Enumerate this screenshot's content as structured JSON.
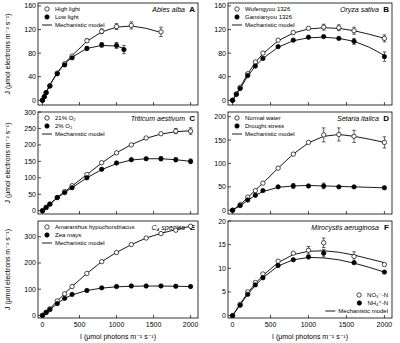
{
  "chart_data": [
    {
      "type": "scatter",
      "panel": "A",
      "title": "Abies alba",
      "y_label": "J (μmol electrons m⁻² s⁻¹)",
      "xlim": [
        -60,
        2100
      ],
      "xticks": [
        0,
        500,
        1000,
        1500,
        2000
      ],
      "ylim": [
        -8,
        165
      ],
      "yticks": [
        0,
        40,
        80,
        120,
        160
      ],
      "tick_labels": "y",
      "legend": "top-left",
      "series": [
        {
          "name": "High light",
          "color": "#000000",
          "marker": "open-circle",
          "x": [
            0,
            25,
            50,
            100,
            200,
            300,
            400,
            600,
            800,
            1000,
            1200,
            1600
          ],
          "values": [
            0,
            6,
            13,
            25,
            46,
            62,
            75,
            101,
            117,
            125,
            127,
            116
          ],
          "errors": [
            null,
            null,
            null,
            null,
            null,
            null,
            null,
            3,
            4,
            5,
            6,
            8
          ]
        },
        {
          "name": "Low light",
          "color": "#000000",
          "marker": "filled-circle",
          "x": [
            0,
            25,
            50,
            100,
            200,
            300,
            400,
            600,
            800,
            1000,
            1100
          ],
          "values": [
            0,
            6,
            13,
            24,
            45,
            60,
            72,
            88,
            94,
            93,
            86
          ],
          "errors": [
            null,
            null,
            null,
            null,
            null,
            null,
            null,
            3,
            4,
            5,
            7
          ]
        },
        {
          "name": "Mechanistic model",
          "type": "line",
          "color": "#000000",
          "line_style": "solid",
          "x": [
            0,
            100,
            200,
            300,
            400,
            600,
            800,
            1000,
            1200,
            1400,
            1600,
            null,
            0,
            100,
            200,
            300,
            400,
            600,
            800,
            1000,
            1100
          ],
          "values": [
            0,
            26,
            47,
            63,
            76,
            100,
            116,
            124,
            126,
            122,
            115,
            null,
            0,
            26,
            46,
            62,
            73,
            88,
            93,
            92,
            88
          ]
        }
      ]
    },
    {
      "type": "scatter",
      "panel": "B",
      "title": "Oryza sativa",
      "xlim": [
        -60,
        2100
      ],
      "xticks": [
        0,
        500,
        1000,
        1500,
        2000
      ],
      "ylim": [
        -8,
        165
      ],
      "yticks": [
        0,
        40,
        80,
        120,
        160
      ],
      "tick_labels": "y",
      "legend": "top-left",
      "series": [
        {
          "name": "Wufengyou 1326",
          "color": "#000000",
          "marker": "open-circle",
          "x": [
            0,
            50,
            100,
            200,
            300,
            400,
            600,
            800,
            1000,
            1200,
            1400,
            1600,
            2000
          ],
          "values": [
            0,
            11,
            22,
            45,
            65,
            80,
            102,
            115,
            122,
            124,
            123,
            118,
            105
          ],
          "errors": [
            null,
            null,
            null,
            null,
            null,
            null,
            null,
            null,
            null,
            5,
            5,
            6,
            6
          ]
        },
        {
          "name": "Ganxianyou 1326",
          "color": "#000000",
          "marker": "filled-circle",
          "x": [
            0,
            50,
            100,
            200,
            300,
            400,
            600,
            800,
            1000,
            1200,
            1400,
            1600,
            2000
          ],
          "values": [
            0,
            10,
            20,
            42,
            58,
            71,
            91,
            102,
            107,
            108,
            105,
            100,
            74
          ],
          "errors": [
            null,
            null,
            null,
            null,
            null,
            null,
            null,
            null,
            null,
            null,
            null,
            5,
            8
          ]
        },
        {
          "name": "Mechanistic model",
          "type": "line",
          "color": "#000000",
          "line_style": "solid",
          "x": [
            0,
            100,
            200,
            300,
            400,
            600,
            800,
            1000,
            1200,
            1400,
            1600,
            1800,
            2000,
            null,
            0,
            100,
            200,
            300,
            400,
            600,
            800,
            1000,
            1200,
            1400,
            1600,
            1800,
            2000
          ],
          "values": [
            0,
            22,
            45,
            64,
            79,
            101,
            114,
            121,
            123,
            122,
            118,
            112,
            105,
            null,
            0,
            20,
            41,
            58,
            71,
            90,
            101,
            106,
            107,
            105,
            100,
            90,
            76
          ]
        }
      ]
    },
    {
      "type": "scatter",
      "panel": "C",
      "title": "Triticum aestivum",
      "y_label": "J (μmol electrons m⁻² s⁻¹)",
      "xlim": [
        -60,
        2100
      ],
      "xticks": [
        0,
        500,
        1000,
        1500,
        2000
      ],
      "ylim": [
        -10,
        300
      ],
      "yticks": [
        0,
        50,
        100,
        150,
        200,
        250,
        300
      ],
      "tick_labels": "y",
      "legend": "top-left",
      "series": [
        {
          "name": "21% O₂",
          "color": "#000000",
          "marker": "open-circle",
          "x": [
            0,
            50,
            100,
            200,
            300,
            400,
            600,
            800,
            1000,
            1200,
            1400,
            1600,
            1800,
            2000
          ],
          "values": [
            0,
            10,
            20,
            40,
            58,
            76,
            110,
            146,
            176,
            200,
            221,
            234,
            242,
            242
          ],
          "errors": [
            null,
            null,
            null,
            null,
            null,
            null,
            null,
            null,
            null,
            null,
            null,
            null,
            8,
            10
          ]
        },
        {
          "name": "2% O₂",
          "color": "#000000",
          "marker": "filled-circle",
          "x": [
            0,
            50,
            100,
            200,
            300,
            400,
            600,
            800,
            1000,
            1200,
            1400,
            1600,
            1800,
            2000
          ],
          "values": [
            0,
            10,
            20,
            40,
            55,
            70,
            100,
            126,
            145,
            155,
            158,
            158,
            155,
            150
          ],
          "errors": [
            null,
            null,
            null,
            null,
            null,
            null,
            null,
            null,
            null,
            null,
            null,
            6,
            6,
            7
          ]
        },
        {
          "name": "Mechanistic model",
          "type": "line",
          "color": "#000000",
          "line_style": "solid",
          "x": [
            0,
            100,
            200,
            300,
            400,
            600,
            800,
            1000,
            1200,
            1400,
            1600,
            1800,
            2000,
            null,
            0,
            100,
            200,
            300,
            400,
            600,
            800,
            1000,
            1200,
            1400,
            1600,
            1800,
            2000
          ],
          "values": [
            0,
            20,
            40,
            58,
            75,
            110,
            145,
            176,
            201,
            220,
            233,
            240,
            243,
            null,
            0,
            20,
            39,
            55,
            70,
            100,
            125,
            143,
            154,
            158,
            158,
            155,
            150
          ]
        }
      ]
    },
    {
      "type": "scatter",
      "panel": "D",
      "title": "Setaria italica",
      "xlim": [
        -60,
        2100
      ],
      "xticks": [
        0,
        500,
        1000,
        1500,
        2000
      ],
      "ylim": [
        -8,
        210
      ],
      "yticks": [
        0,
        50,
        100,
        150,
        200
      ],
      "tick_labels": "y",
      "legend": "top-left",
      "series": [
        {
          "name": "Normal water",
          "color": "#000000",
          "marker": "open-circle",
          "x": [
            0,
            100,
            200,
            300,
            400,
            600,
            800,
            1000,
            1200,
            1400,
            1600,
            2000
          ],
          "values": [
            0,
            12,
            28,
            42,
            58,
            90,
            120,
            145,
            161,
            162,
            158,
            145
          ],
          "errors": [
            null,
            null,
            null,
            null,
            null,
            null,
            null,
            null,
            15,
            14,
            13,
            12
          ]
        },
        {
          "name": "Drought stress",
          "color": "#000000",
          "marker": "filled-circle",
          "x": [
            0,
            100,
            200,
            300,
            400,
            600,
            800,
            1000,
            1200,
            1400,
            1600,
            2000
          ],
          "values": [
            0,
            10,
            22,
            32,
            42,
            50,
            52,
            52,
            52,
            50,
            50,
            48
          ],
          "errors": [
            null,
            null,
            null,
            null,
            null,
            null,
            5,
            null,
            6,
            null,
            null,
            null
          ]
        },
        {
          "name": "Mechanistic model",
          "type": "line",
          "color": "#000000",
          "line_style": "solid",
          "x": [
            0,
            100,
            200,
            300,
            400,
            600,
            800,
            1000,
            1200,
            1400,
            1600,
            1800,
            2000,
            null,
            0,
            100,
            200,
            300,
            400,
            600,
            800,
            1000,
            1200,
            1400,
            1600,
            1800,
            2000
          ],
          "values": [
            0,
            12,
            27,
            43,
            58,
            90,
            120,
            144,
            158,
            162,
            158,
            152,
            145,
            null,
            0,
            10,
            21,
            32,
            40,
            49,
            52,
            53,
            52,
            51,
            50,
            49,
            48
          ]
        }
      ]
    },
    {
      "type": "scatter",
      "panel": "E",
      "title": "C₄ species",
      "y_label": "J (μmol electrons m⁻² s⁻¹)",
      "x_label": "I (μmol photons m⁻² s⁻¹)",
      "xlim": [
        -60,
        2100
      ],
      "xticks": [
        0,
        500,
        1000,
        1500,
        2000
      ],
      "ylim": [
        -10,
        360
      ],
      "yticks": [
        0,
        100,
        200,
        300
      ],
      "legend": "top-left",
      "series": [
        {
          "name": "Amaranthus hypochondriacus",
          "color": "#000000",
          "marker": "open-circle",
          "x": [
            0,
            50,
            100,
            200,
            300,
            400,
            600,
            800,
            1000,
            1200,
            1400,
            1600,
            1800,
            2000
          ],
          "values": [
            0,
            12,
            25,
            55,
            82,
            110,
            160,
            205,
            240,
            270,
            295,
            312,
            325,
            340
          ]
        },
        {
          "name": "Zea mays",
          "color": "#000000",
          "marker": "filled-circle",
          "x": [
            0,
            50,
            100,
            200,
            300,
            400,
            600,
            800,
            1000,
            1200,
            1400,
            1600,
            1800,
            2000
          ],
          "values": [
            0,
            11,
            22,
            45,
            65,
            80,
            95,
            105,
            110,
            112,
            112,
            112,
            111,
            110
          ]
        },
        {
          "name": "Mechanistic model",
          "type": "line",
          "color": "#000000",
          "line_style": "solid",
          "x": [
            0,
            100,
            200,
            300,
            400,
            600,
            800,
            1000,
            1200,
            1400,
            1600,
            1800,
            2000,
            null,
            0,
            100,
            200,
            300,
            400,
            600,
            800,
            1000,
            1200,
            1400,
            1600,
            1800,
            2000
          ],
          "values": [
            0,
            25,
            55,
            83,
            110,
            160,
            205,
            240,
            270,
            295,
            313,
            327,
            340,
            null,
            0,
            22,
            45,
            65,
            78,
            95,
            104,
            109,
            111,
            112,
            112,
            111,
            110
          ]
        }
      ]
    },
    {
      "type": "scatter",
      "panel": "F",
      "title": "Mirocystis aeruginosa",
      "x_label": "I (μmol photons m⁻² s⁻¹)",
      "xlim": [
        -60,
        2100
      ],
      "xticks": [
        0,
        500,
        1000,
        1500,
        2000
      ],
      "ylim": [
        -0.5,
        20
      ],
      "yticks": [
        0,
        5,
        10,
        15,
        20
      ],
      "legend": "bottom-right",
      "series": [
        {
          "name": "NO₃⁻-N",
          "color": "#000000",
          "marker": "open-circle",
          "x": [
            0,
            100,
            200,
            300,
            400,
            600,
            800,
            1000,
            1200,
            1600,
            2000
          ],
          "values": [
            0,
            2.4,
            5,
            7,
            8.8,
            11.5,
            13.2,
            13.8,
            15.4,
            12.5,
            10.8
          ],
          "errors": [
            null,
            null,
            null,
            null,
            null,
            null,
            null,
            0.8,
            1,
            1,
            null
          ]
        },
        {
          "name": "NH₄⁺-N",
          "color": "#000000",
          "marker": "filled-circle",
          "x": [
            0,
            100,
            200,
            300,
            400,
            600,
            800,
            1000,
            1200,
            1600,
            2000
          ],
          "values": [
            0,
            2.2,
            4.5,
            6.5,
            8,
            10.6,
            11.8,
            12.4,
            13.2,
            11.2,
            9.2
          ],
          "errors": [
            null,
            null,
            null,
            null,
            null,
            null,
            null,
            null,
            0.8,
            null,
            null
          ]
        },
        {
          "name": "Mechanistic model",
          "type": "line",
          "color": "#000000",
          "line_style": "solid",
          "x": [
            0,
            100,
            200,
            300,
            400,
            600,
            800,
            1000,
            1200,
            1400,
            1600,
            1800,
            2000,
            null,
            0,
            100,
            200,
            300,
            400,
            600,
            800,
            1000,
            1200,
            1400,
            1600,
            1800,
            2000
          ],
          "values": [
            0,
            2.5,
            4.8,
            6.8,
            8.5,
            11.2,
            12.9,
            13.6,
            13.7,
            13.4,
            12.8,
            12,
            11.2,
            null,
            0,
            2.3,
            4.5,
            6.4,
            8,
            10.5,
            11.8,
            12.3,
            12.2,
            11.8,
            11.1,
            10.2,
            9.2
          ]
        }
      ]
    }
  ]
}
